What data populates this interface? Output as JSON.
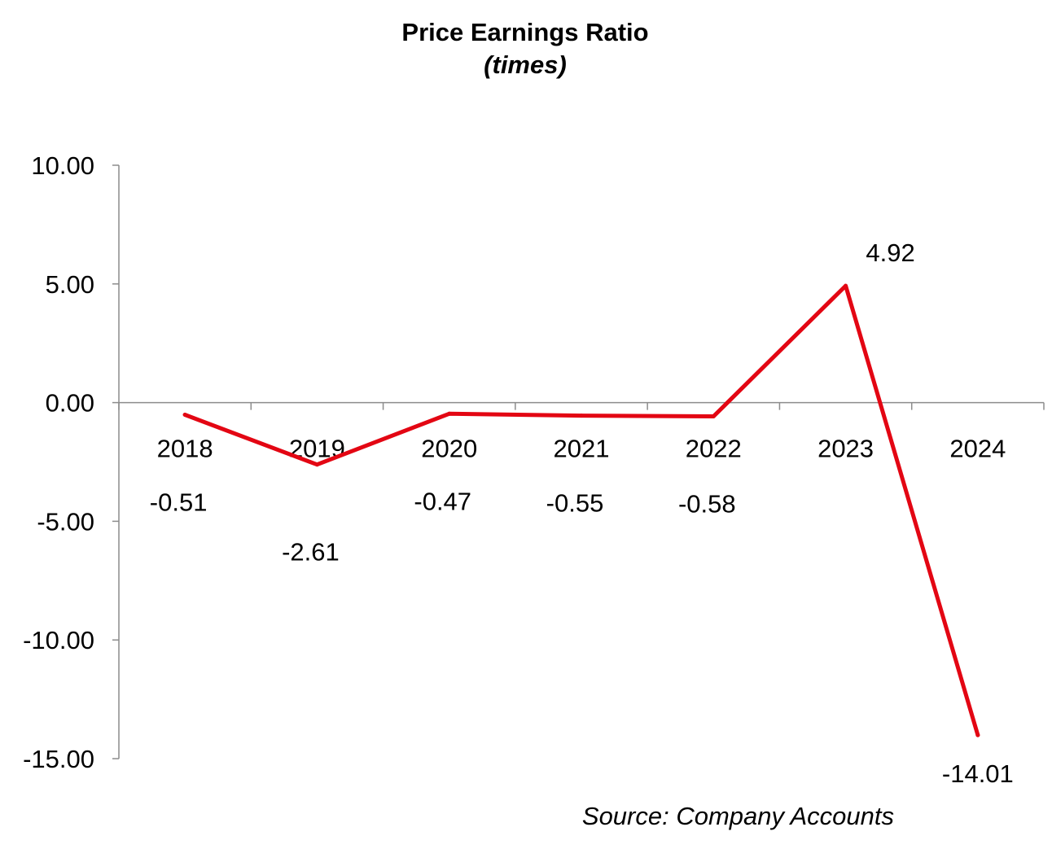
{
  "chart_data": {
    "type": "line",
    "title": "Price Earnings Ratio",
    "subtitle": "(times)",
    "categories": [
      "2018",
      "2019",
      "2020",
      "2021",
      "2022",
      "2023",
      "2024"
    ],
    "series": [
      {
        "values": [
          -0.51,
          -2.61,
          -0.47,
          -0.55,
          -0.58,
          4.92,
          -14.01
        ],
        "color": "#e30613"
      }
    ],
    "data_labels": [
      "-0.51",
      "-2.61",
      "-0.47",
      "-0.55",
      "-0.58",
      "4.92",
      "-14.01"
    ],
    "ylim": [
      -15,
      10
    ],
    "y_ticks": [
      10,
      5,
      0,
      -5,
      -10,
      -15
    ],
    "y_tick_labels": [
      "10.00",
      "5.00",
      "0.00",
      "-5.00",
      "-10.00",
      "-15.00"
    ],
    "grid": false,
    "legend": "none",
    "xlabel": "",
    "ylabel": ""
  },
  "source": "Source: Company Accounts"
}
